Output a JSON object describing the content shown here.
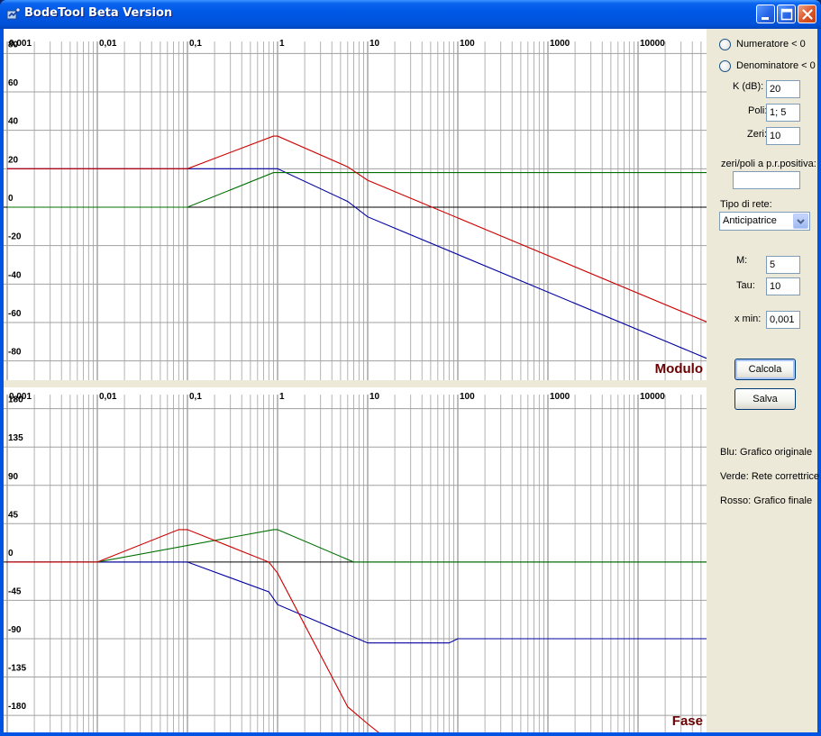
{
  "window": {
    "title": "BodeTool Beta Version"
  },
  "colors": {
    "original": "#0000a0",
    "correction": "#007000",
    "final": "#cc0000",
    "grid": "#a0a0a0",
    "plot_label": "#6b0000"
  },
  "plots": {
    "x_tick_labels": [
      "0,001",
      "0,01",
      "0,1",
      "1",
      "10",
      "100",
      "1000",
      "10000"
    ],
    "magnitude": {
      "title": "Modulo",
      "y_tick_labels": [
        "80",
        "60",
        "40",
        "20",
        "0",
        "-20",
        "-40",
        "-60",
        "-80"
      ]
    },
    "phase": {
      "title": "Fase",
      "y_tick_labels": [
        "180",
        "135",
        "90",
        "45",
        "0",
        "-45",
        "-90",
        "-135",
        "-180"
      ]
    }
  },
  "chart_data": [
    {
      "type": "line",
      "title": "Modulo",
      "x_scale": "log",
      "xlim": [
        0.001,
        60000
      ],
      "ylim": [
        -90,
        90
      ],
      "series": [
        {
          "name": "Grafico originale",
          "color": "#0000a0",
          "points": [
            [
              0.001,
              20
            ],
            [
              1,
              20
            ],
            [
              6,
              3
            ],
            [
              10,
              -5
            ],
            [
              60000,
              -79
            ]
          ]
        },
        {
          "name": "Rete correttrice",
          "color": "#007000",
          "points": [
            [
              0.001,
              0
            ],
            [
              0.1,
              0
            ],
            [
              0.9,
              18
            ],
            [
              60000,
              18
            ]
          ]
        },
        {
          "name": "Grafico finale",
          "color": "#cc0000",
          "points": [
            [
              0.001,
              20
            ],
            [
              0.1,
              20
            ],
            [
              0.9,
              37
            ],
            [
              1,
              37
            ],
            [
              6,
              21
            ],
            [
              10,
              14
            ],
            [
              60000,
              -60
            ]
          ]
        }
      ]
    },
    {
      "type": "line",
      "title": "Fase",
      "x_scale": "log",
      "xlim": [
        0.001,
        60000
      ],
      "ylim": [
        -200,
        205
      ],
      "series": [
        {
          "name": "Grafico originale",
          "color": "#0000a0",
          "points": [
            [
              0.001,
              0
            ],
            [
              0.1,
              0
            ],
            [
              0.8,
              -35
            ],
            [
              1,
              -50
            ],
            [
              10,
              -95
            ],
            [
              80,
              -95
            ],
            [
              100,
              -90
            ],
            [
              60000,
              -90
            ]
          ]
        },
        {
          "name": "Rete correttrice",
          "color": "#007000",
          "points": [
            [
              0.001,
              0
            ],
            [
              0.01,
              0
            ],
            [
              0.9,
              38
            ],
            [
              1,
              38
            ],
            [
              7,
              0
            ],
            [
              60000,
              0
            ]
          ]
        },
        {
          "name": "Grafico finale",
          "color": "#cc0000",
          "points": [
            [
              0.001,
              0
            ],
            [
              0.01,
              0
            ],
            [
              0.08,
              38
            ],
            [
              0.1,
              38
            ],
            [
              0.8,
              0
            ],
            [
              1,
              -13
            ],
            [
              6,
              -170
            ],
            [
              10,
              -190
            ],
            [
              30,
              -230
            ]
          ]
        }
      ]
    }
  ],
  "side": {
    "radio_numeratore": "Numeratore < 0",
    "radio_denominatore": "Denominatore < 0",
    "k_label": "K (dB):",
    "k_value": "20",
    "poli_label": "Poli:",
    "poli_value": "1; 5",
    "zeri_label": "Zeri:",
    "zeri_value": "10",
    "positive_label": "zeri/poli a p.r.positiva:",
    "positive_value": "",
    "tipo_label": "Tipo di rete:",
    "tipo_value": "Anticipatrice",
    "m_label": "M:",
    "m_value": "5",
    "tau_label": "Tau:",
    "tau_value": "10",
    "xmin_label": "x min:",
    "xmin_value": "0,001",
    "calcola_label": "Calcola",
    "salva_label": "Salva",
    "legend_blue": "Blu: Grafico originale",
    "legend_green": "Verde: Rete correttrice",
    "legend_red": "Rosso: Grafico finale"
  }
}
